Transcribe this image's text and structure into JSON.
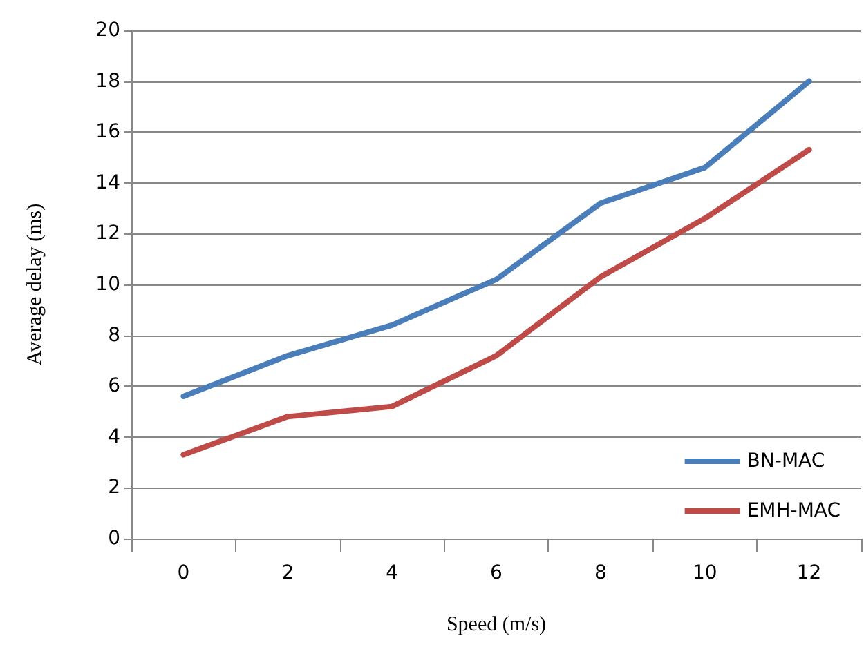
{
  "chart_data": {
    "type": "line",
    "xlabel": "Speed (m/s)",
    "ylabel": "Average delay (ms)",
    "categories": [
      "0",
      "2",
      "4",
      "6",
      "8",
      "10",
      "12"
    ],
    "series": [
      {
        "name": "BN-MAC",
        "color": "#4a7ebb",
        "values": [
          5.6,
          7.2,
          8.4,
          10.2,
          13.2,
          14.6,
          18.0
        ]
      },
      {
        "name": "EMH-MAC",
        "color": "#be4b48",
        "values": [
          3.3,
          4.8,
          5.2,
          7.2,
          10.3,
          12.6,
          15.3
        ]
      }
    ],
    "ylim": [
      0,
      20
    ],
    "yticks": [
      0,
      2,
      4,
      6,
      8,
      10,
      12,
      14,
      16,
      18,
      20
    ],
    "grid": "y",
    "legend": "bottom right",
    "marker": "none",
    "line_style": "solid"
  }
}
